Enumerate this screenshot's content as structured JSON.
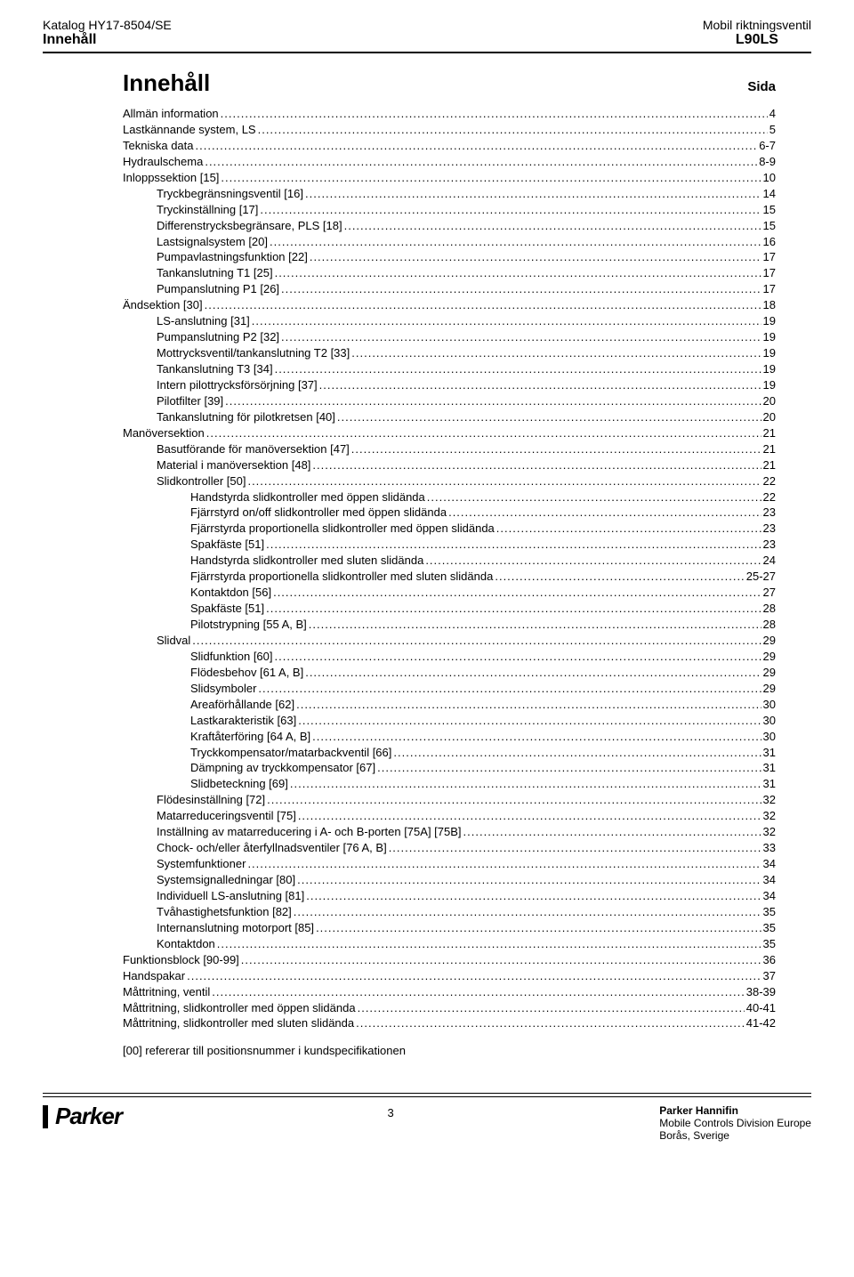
{
  "header": {
    "catalog": "Katalog HY17-8504/SE",
    "section": "Innehåll",
    "product": "Mobil riktningsventil",
    "model": "L90LS"
  },
  "title": "Innehåll",
  "sida": "Sida",
  "toc": [
    {
      "indent": 0,
      "label": "Allmän information",
      "page": "4"
    },
    {
      "indent": 0,
      "label": "Lastkännande system, LS",
      "page": "5"
    },
    {
      "indent": 0,
      "label": "Tekniska data",
      "page": "6-7"
    },
    {
      "indent": 0,
      "label": "Hydraulschema",
      "page": "8-9"
    },
    {
      "indent": 0,
      "label": "Inloppssektion [15]",
      "page": "10"
    },
    {
      "indent": 1,
      "label": "Tryckbegränsningsventil [16]",
      "page": "14"
    },
    {
      "indent": 1,
      "label": "Tryckinställning [17]",
      "page": "15"
    },
    {
      "indent": 1,
      "label": "Differenstrycksbegränsare, PLS [18]",
      "page": "15"
    },
    {
      "indent": 1,
      "label": "Lastsignalsystem [20]",
      "page": "16"
    },
    {
      "indent": 1,
      "label": "Pumpavlastningsfunktion [22]",
      "page": "17"
    },
    {
      "indent": 1,
      "label": "Tankanslutning T1 [25]",
      "page": "17"
    },
    {
      "indent": 1,
      "label": "Pumpanslutning P1 [26]",
      "page": "17"
    },
    {
      "indent": 0,
      "label": "Ändsektion [30]",
      "page": "18"
    },
    {
      "indent": 1,
      "label": "LS-anslutning [31]",
      "page": "19"
    },
    {
      "indent": 1,
      "label": "Pumpanslutning P2 [32]",
      "page": "19"
    },
    {
      "indent": 1,
      "label": "Mottrycksventil/tankanslutning T2 [33]",
      "page": "19"
    },
    {
      "indent": 1,
      "label": "Tankanslutning T3 [34]",
      "page": "19"
    },
    {
      "indent": 1,
      "label": "Intern pilottrycksförsörjning [37]",
      "page": "19"
    },
    {
      "indent": 1,
      "label": "Pilotfilter [39]",
      "page": "20"
    },
    {
      "indent": 1,
      "label": "Tankanslutning för pilotkretsen [40]",
      "page": "20"
    },
    {
      "indent": 0,
      "label": "Manöversektion",
      "page": "21"
    },
    {
      "indent": 1,
      "label": "Basutförande för manöversektion [47]",
      "page": "21"
    },
    {
      "indent": 1,
      "label": "Material i manöversektion [48]",
      "page": "21"
    },
    {
      "indent": 1,
      "label": "Slidkontroller [50]",
      "page": "22"
    },
    {
      "indent": 2,
      "label": "Handstyrda slidkontroller med öppen slidända",
      "page": "22"
    },
    {
      "indent": 2,
      "label": "Fjärrstyrd on/off slidkontroller med öppen slidända",
      "page": "23"
    },
    {
      "indent": 2,
      "label": "Fjärrstyrda proportionella slidkontroller med öppen slidända",
      "page": "23"
    },
    {
      "indent": 2,
      "label": "Spakfäste [51]",
      "page": "23"
    },
    {
      "indent": 2,
      "label": "Handstyrda slidkontroller med sluten slidända",
      "page": "24"
    },
    {
      "indent": 2,
      "label": "Fjärrstyrda proportionella slidkontroller med sluten slidända",
      "page": "25-27"
    },
    {
      "indent": 2,
      "label": "Kontaktdon [56]",
      "page": "27"
    },
    {
      "indent": 2,
      "label": "Spakfäste [51]",
      "page": "28"
    },
    {
      "indent": 2,
      "label": "Pilotstrypning [55 A, B]",
      "page": "28"
    },
    {
      "indent": 1,
      "label": "Slidval",
      "page": "29"
    },
    {
      "indent": 2,
      "label": "Slidfunktion [60]",
      "page": "29"
    },
    {
      "indent": 2,
      "label": "Flödesbehov [61 A, B]",
      "page": "29"
    },
    {
      "indent": 2,
      "label": "Slidsymboler",
      "page": "29"
    },
    {
      "indent": 2,
      "label": "Areaförhållande [62]",
      "page": "30"
    },
    {
      "indent": 2,
      "label": "Lastkarakteristik [63]",
      "page": "30"
    },
    {
      "indent": 2,
      "label": "Kraftåterföring [64 A, B]",
      "page": "30"
    },
    {
      "indent": 2,
      "label": "Tryckkompensator/matarbackventil [66]",
      "page": "31"
    },
    {
      "indent": 2,
      "label": "Dämpning av tryckkompensator [67]",
      "page": "31"
    },
    {
      "indent": 2,
      "label": "Slidbeteckning [69]",
      "page": "31"
    },
    {
      "indent": 1,
      "label": "Flödesinställning [72]",
      "page": "32"
    },
    {
      "indent": 1,
      "label": "Matarreduceringsventil [75]",
      "page": "32"
    },
    {
      "indent": 1,
      "label": "Inställning av matarreducering i A- och B-porten [75A] [75B]",
      "page": "32"
    },
    {
      "indent": 1,
      "label": "Chock- och/eller återfyllnadsventiler [76 A, B]",
      "page": "33"
    },
    {
      "indent": 1,
      "label": "Systemfunktioner",
      "page": "34"
    },
    {
      "indent": 1,
      "label": "Systemsignalledningar [80]",
      "page": "34"
    },
    {
      "indent": 1,
      "label": "Individuell LS-anslutning [81]",
      "page": "34"
    },
    {
      "indent": 1,
      "label": "Tvåhastighetsfunktion [82]",
      "page": "35"
    },
    {
      "indent": 1,
      "label": "Internanslutning motorport [85]",
      "page": "35"
    },
    {
      "indent": 1,
      "label": "Kontaktdon",
      "page": "35"
    },
    {
      "indent": 0,
      "label": "Funktionsblock [90-99]",
      "page": "36"
    },
    {
      "indent": 0,
      "label": "Handspakar",
      "page": "37"
    },
    {
      "indent": 0,
      "label": "Måttritning, ventil",
      "page": "38-39"
    },
    {
      "indent": 0,
      "label": "Måttritning, slidkontroller med öppen slidända",
      "page": "40-41"
    },
    {
      "indent": 0,
      "label": "Måttritning, slidkontroller med sluten slidända",
      "page": "41-42"
    }
  ],
  "note": "[00] refererar till positionsnummer i kundspecifikationen",
  "footer": {
    "pagenum": "3",
    "company": "Parker Hannifin",
    "division": "Mobile Controls Division Europe",
    "city": "Borås, Sverige",
    "logo": "Parker"
  }
}
